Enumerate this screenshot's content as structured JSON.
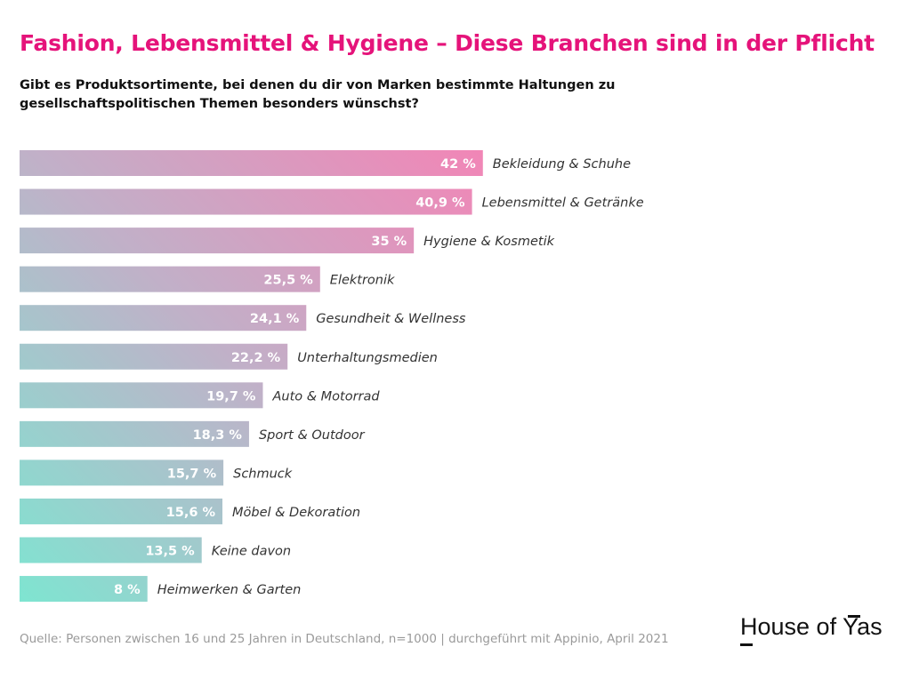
{
  "chart_data": {
    "type": "bar",
    "orientation": "horizontal",
    "title": "Fashion, Lebensmittel & Hygiene – Diese Branchen sind in der Pflicht",
    "subtitle": "Gibt es Produktsortimente, bei denen du dir von Marken bestimmte Haltungen zu gesellschaftspolitischen Themen besonders wünschst?",
    "categories": [
      "Bekleidung & Schuhe",
      "Lebensmittel & Getränke",
      "Hygiene & Kosmetik",
      "Elektronik",
      "Gesundheit & Wellness",
      "Unterhaltungsmedien",
      "Auto & Motorrad",
      "Sport & Outdoor",
      "Schmuck",
      "Möbel & Dekoration",
      "Keine davon",
      "Heimwerken & Garten"
    ],
    "values": [
      42,
      40.9,
      35,
      25.5,
      24.1,
      22.2,
      19.7,
      18.3,
      15.7,
      15.6,
      13.5,
      8
    ],
    "value_labels": [
      "42 %",
      "40,9 %",
      "35 %",
      "25,5 %",
      "24,1 %",
      "22,2 %",
      "19,7 %",
      "18,3 %",
      "15,7 %",
      "15,6 %",
      "13,5 %",
      "8 %"
    ],
    "unit": "%",
    "xlabel": "",
    "ylabel": "",
    "grid": false,
    "colors": {
      "pink": "#f285b6",
      "mid": "#c1b0c8",
      "teal": "#7ee5d1",
      "title": "#e5137a"
    }
  },
  "source": "Quelle: Personen zwischen 16 und 25 Jahren in Deutschland, n=1000 | durchgeführt mit Appinio, April 2021",
  "logo": "House of Yas"
}
